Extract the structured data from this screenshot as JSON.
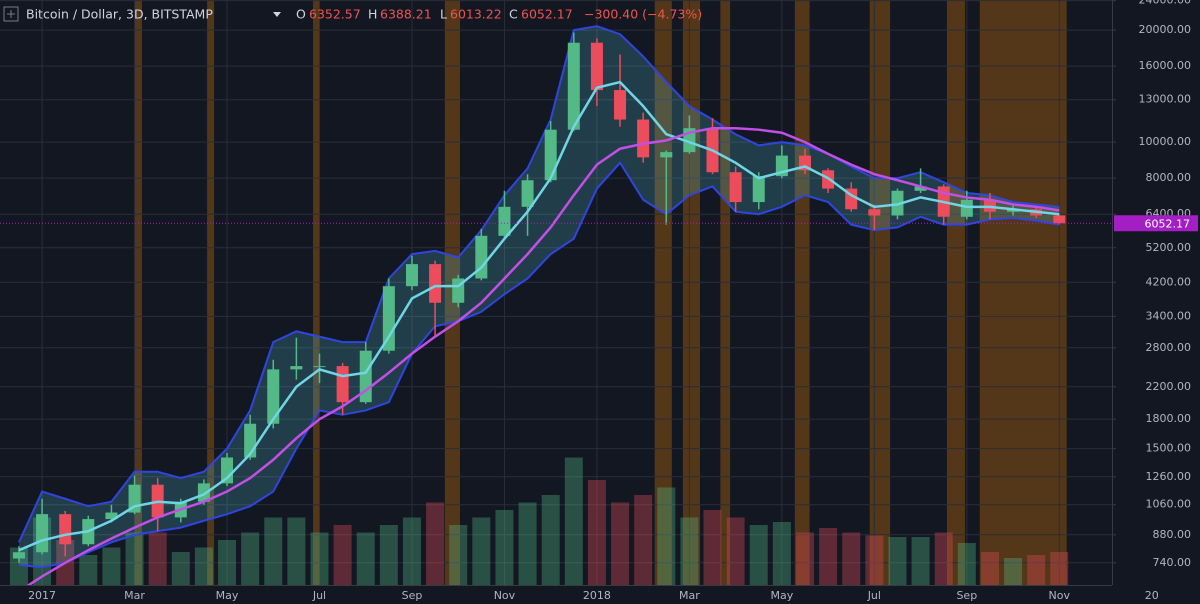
{
  "chart_data": {
    "type": "candlestick",
    "title": "Bitcoin / Dollar, 3D, BITSTAMP",
    "ohlc_letters": [
      "O",
      "H",
      "L",
      "C"
    ],
    "change": "−300.40 (−4.73%)",
    "log": true,
    "grid": true,
    "up_color": "#53b987",
    "down_color": "#eb4d5c",
    "x": [
      -0.5,
      0,
      0.5,
      1,
      1.5,
      2,
      2.5,
      3,
      3.5,
      4,
      4.5,
      5,
      5.5,
      6,
      6.5,
      7,
      7.5,
      8,
      8.5,
      9,
      9.5,
      10,
      10.5,
      11,
      11.5,
      12,
      12.5,
      13,
      13.5,
      14,
      14.5,
      15,
      15.5,
      16,
      16.5,
      17,
      17.5,
      18,
      18.5,
      19,
      19.5,
      20,
      20.5,
      21,
      21.5,
      22
    ],
    "ohlc": [
      [
        760,
        820,
        740,
        790
      ],
      [
        790,
        1100,
        780,
        1000
      ],
      [
        1000,
        1020,
        770,
        830
      ],
      [
        830,
        990,
        820,
        970
      ],
      [
        970,
        1060,
        950,
        1010
      ],
      [
        1010,
        1270,
        1000,
        1200
      ],
      [
        1200,
        1250,
        900,
        980
      ],
      [
        980,
        1100,
        950,
        1080
      ],
      [
        1080,
        1240,
        1060,
        1210
      ],
      [
        1210,
        1460,
        1190,
        1420
      ],
      [
        1420,
        1850,
        1400,
        1750
      ],
      [
        1750,
        2600,
        1700,
        2450
      ],
      [
        2450,
        2980,
        2300,
        2500
      ],
      [
        2500,
        2700,
        2250,
        2500
      ],
      [
        2500,
        2550,
        1850,
        2000
      ],
      [
        2000,
        2900,
        1980,
        2750
      ],
      [
        2750,
        4300,
        2700,
        4100
      ],
      [
        4100,
        4950,
        4000,
        4700
      ],
      [
        4700,
        4800,
        3000,
        3700
      ],
      [
        3700,
        4400,
        3600,
        4300
      ],
      [
        4300,
        5850,
        4250,
        5600
      ],
      [
        5600,
        7400,
        5500,
        6700
      ],
      [
        6700,
        8200,
        5600,
        7900
      ],
      [
        7900,
        11400,
        7800,
        10800
      ],
      [
        10800,
        19700,
        10700,
        18500
      ],
      [
        18500,
        19000,
        12500,
        13800
      ],
      [
        13800,
        17200,
        11000,
        11500
      ],
      [
        11500,
        12000,
        8800,
        9100
      ],
      [
        9100,
        9500,
        6000,
        9400
      ],
      [
        9400,
        11800,
        9300,
        10900
      ],
      [
        10900,
        11600,
        8200,
        8300
      ],
      [
        8300,
        8600,
        6500,
        6900
      ],
      [
        6900,
        8300,
        6600,
        8100
      ],
      [
        8100,
        9800,
        8000,
        9200
      ],
      [
        9200,
        9600,
        8200,
        8400
      ],
      [
        8400,
        8500,
        7300,
        7500
      ],
      [
        7500,
        7800,
        6500,
        6600
      ],
      [
        6600,
        6800,
        5800,
        6350
      ],
      [
        6350,
        7500,
        6200,
        7400
      ],
      [
        7400,
        8500,
        7300,
        7600
      ],
      [
        7600,
        7700,
        6000,
        6300
      ],
      [
        6300,
        7400,
        6200,
        7000
      ],
      [
        7000,
        7300,
        6200,
        6500
      ],
      [
        6500,
        6800,
        6350,
        6600
      ],
      [
        6600,
        6700,
        6250,
        6352.57
      ],
      [
        6352.57,
        6388.21,
        6013.22,
        6052.17
      ]
    ],
    "lines": [
      {
        "color": "#6fd6e6",
        "values": [
          800,
          850,
          880,
          900,
          960,
          1050,
          1080,
          1070,
          1130,
          1250,
          1450,
          1800,
          2200,
          2450,
          2350,
          2400,
          3000,
          3800,
          4100,
          4100,
          4600,
          5500,
          6500,
          8000,
          11000,
          14000,
          14500,
          12500,
          10500,
          10000,
          9500,
          8800,
          8000,
          8300,
          8600,
          8000,
          7200,
          6700,
          6800,
          7100,
          6900,
          6700,
          6700,
          6600,
          6500,
          6400
        ]
      },
      {
        "color": "#c24fe6",
        "values": [
          620,
          680,
          740,
          800,
          860,
          920,
          980,
          1030,
          1080,
          1150,
          1250,
          1400,
          1600,
          1800,
          1950,
          2150,
          2400,
          2700,
          3000,
          3300,
          3700,
          4300,
          5000,
          5900,
          7200,
          8700,
          9600,
          9900,
          10100,
          10600,
          10900,
          10900,
          10800,
          10600,
          10000,
          9300,
          8700,
          8200,
          7900,
          7600,
          7300,
          7100,
          7000,
          6800,
          6700,
          6550
        ]
      }
    ],
    "band": {
      "color": "rgba(90,200,220,0.22)",
      "edge_color": "#2f45e0",
      "upper": [
        840,
        1150,
        1100,
        1050,
        1080,
        1300,
        1300,
        1250,
        1300,
        1500,
        1900,
        2900,
        3100,
        3000,
        2900,
        2900,
        4300,
        5000,
        5100,
        4900,
        5800,
        7200,
        8500,
        11500,
        20000,
        20500,
        19500,
        17000,
        14500,
        12500,
        11500,
        10500,
        9800,
        10000,
        9800,
        9300,
        8600,
        8000,
        8000,
        8300,
        7800,
        7300,
        7200,
        6900,
        6800,
        6700
      ],
      "lower": [
        730,
        720,
        740,
        790,
        840,
        880,
        900,
        920,
        960,
        1000,
        1050,
        1150,
        1500,
        1900,
        1850,
        1900,
        2000,
        2700,
        3200,
        3300,
        3500,
        3900,
        4300,
        5000,
        5500,
        7500,
        8800,
        7000,
        6400,
        7200,
        7600,
        6500,
        6400,
        6700,
        7200,
        6900,
        6000,
        5800,
        5900,
        6300,
        6000,
        6000,
        6200,
        6250,
        6150,
        6000
      ]
    },
    "volume": [
      25,
      45,
      30,
      20,
      25,
      35,
      35,
      22,
      25,
      30,
      35,
      45,
      45,
      35,
      40,
      35,
      40,
      45,
      55,
      40,
      45,
      50,
      55,
      60,
      85,
      70,
      55,
      60,
      65,
      45,
      50,
      45,
      40,
      42,
      35,
      38,
      35,
      33,
      32,
      32,
      35,
      28,
      22,
      18,
      20,
      22
    ],
    "volume_lim": [
      0,
      100
    ],
    "highlight_color": "rgba(255,140,0,0.28)",
    "highlights": [
      [
        2.0,
        2.16
      ],
      [
        3.57,
        3.72
      ],
      [
        5.86,
        6.01
      ],
      [
        8.71,
        9.04
      ],
      [
        13.25,
        13.62
      ],
      [
        13.86,
        14.23
      ],
      [
        14.67,
        14.88
      ],
      [
        16.28,
        16.6
      ],
      [
        17.9,
        18.34
      ],
      [
        19.57,
        19.96
      ],
      [
        20.28,
        22.16
      ]
    ],
    "xlim": [
      -0.91,
      23.14
    ],
    "xticks": [
      {
        "value": 0,
        "label": "2017"
      },
      {
        "value": 2,
        "label": "Mar"
      },
      {
        "value": 4,
        "label": "May"
      },
      {
        "value": 6,
        "label": "Jul"
      },
      {
        "value": 8,
        "label": "Sep"
      },
      {
        "value": 10,
        "label": "Nov"
      },
      {
        "value": 12,
        "label": "2018"
      },
      {
        "value": 14,
        "label": "Mar"
      },
      {
        "value": 16,
        "label": "May"
      },
      {
        "value": 18,
        "label": "Jul"
      },
      {
        "value": 20,
        "label": "Sep"
      },
      {
        "value": 22,
        "label": "Nov"
      },
      {
        "value": 24,
        "label": "20"
      }
    ],
    "ylim": [
      645,
      24100
    ],
    "yticks": [
      {
        "value": 740,
        "label": "740.00"
      },
      {
        "value": 880,
        "label": "880.00"
      },
      {
        "value": 1060,
        "label": "1060.00"
      },
      {
        "value": 1260,
        "label": "1260.00"
      },
      {
        "value": 1500,
        "label": "1500.00"
      },
      {
        "value": 1800,
        "label": "1800.00"
      },
      {
        "value": 2200,
        "label": "2200.00"
      },
      {
        "value": 2800,
        "label": "2800.00"
      },
      {
        "value": 3400,
        "label": "3400.00"
      },
      {
        "value": 4200,
        "label": "4200.00"
      },
      {
        "value": 5200,
        "label": "5200.00"
      },
      {
        "value": 6400,
        "label": "6400.00"
      },
      {
        "value": 8000,
        "label": "8000.00"
      },
      {
        "value": 10000,
        "label": "10000.00"
      },
      {
        "value": 13000,
        "label": "13000.00"
      },
      {
        "value": 16000,
        "label": "16000.00"
      },
      {
        "value": 20000,
        "label": "20000.00"
      },
      {
        "value": 24000,
        "label": "24000.00"
      }
    ],
    "price_color": "#a31fc4"
  }
}
